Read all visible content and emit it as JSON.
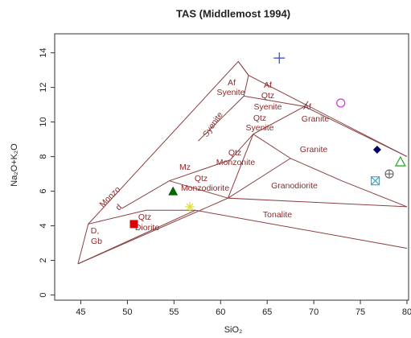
{
  "chart_data": {
    "type": "scatter",
    "title": "TAS (Middlemost 1994)",
    "x_label": "SiO₂",
    "y_label": "Na₂O+K₂O",
    "xlim": [
      42.2,
      80
    ],
    "ylim": [
      -0.3,
      15.1
    ],
    "xticks": [
      45,
      50,
      55,
      60,
      65,
      70,
      75,
      80
    ],
    "yticks": [
      0,
      2,
      4,
      6,
      8,
      10,
      12,
      14
    ],
    "x": [
      66.3,
      72.9,
      76.8,
      78.1,
      76.6,
      79.3,
      54.9,
      56.7,
      50.7
    ],
    "y": [
      13.7,
      11.1,
      8.4,
      7.0,
      6.6,
      7.7,
      6.0,
      5.1,
      4.1
    ],
    "markers": [
      "plus",
      "circle",
      "diamond",
      "circle-plus",
      "square-x",
      "triangle-open",
      "triangle",
      "asterisk",
      "square"
    ],
    "colors": [
      "#3344cc",
      "#cc44cc",
      "#000066",
      "#555555",
      "#33aacc",
      "#33aa33",
      "#006600",
      "#dddd33",
      "#dd0000"
    ],
    "field_boundaries": [
      {
        "x": [
          44.7,
          45.8,
          61.9,
          63,
          80
        ],
        "y": [
          1.8,
          4.1,
          13.5,
          12.7,
          8.0
        ]
      },
      {
        "x": [
          44.7,
          57.3,
          80
        ],
        "y": [
          1.8,
          4.9,
          2.7
        ]
      },
      {
        "x": [
          44.7,
          60.8,
          80
        ],
        "y": [
          1.8,
          5.6,
          5.1
        ]
      },
      {
        "x": [
          45.8,
          52,
          57.3
        ],
        "y": [
          4.1,
          4.9,
          4.9
        ]
      },
      {
        "x": [
          49.4,
          54.5,
          61,
          63.5
        ],
        "y": [
          5.0,
          6.6,
          7.8,
          9.3
        ]
      },
      {
        "x": [
          54.5,
          60.8
        ],
        "y": [
          6.6,
          5.6
        ]
      },
      {
        "x": [
          60.8,
          63.5,
          69,
          80
        ],
        "y": [
          5.6,
          9.3,
          10.9,
          8.0
        ]
      },
      {
        "x": [
          60.8,
          67.5,
          73,
          80
        ],
        "y": [
          5.6,
          7.9,
          6.6,
          5.1
        ]
      },
      {
        "x": [
          57.6,
          62.5,
          63,
          61.9
        ],
        "y": [
          8.9,
          11.5,
          12.7,
          13.5
        ]
      },
      {
        "x": [
          62.5,
          69,
          69.4
        ],
        "y": [
          11.5,
          10.9,
          11.2
        ]
      },
      {
        "x": [
          63.5,
          67.5
        ],
        "y": [
          9.3,
          7.9
        ]
      }
    ],
    "field_labels": [
      "Af",
      "Syenite",
      "Af",
      "Qtz",
      "Syenite",
      "Qtz",
      "Syenite",
      "Syenite",
      "Af",
      "Granite",
      "Granite",
      "Qtz",
      "Monzonite",
      "Mz",
      "Qtz",
      "Monzodiorite",
      "Granodiorite",
      "Monzo",
      "d",
      "Qtz",
      "Diorite",
      "D,",
      "Gb",
      "Tonalite"
    ]
  }
}
